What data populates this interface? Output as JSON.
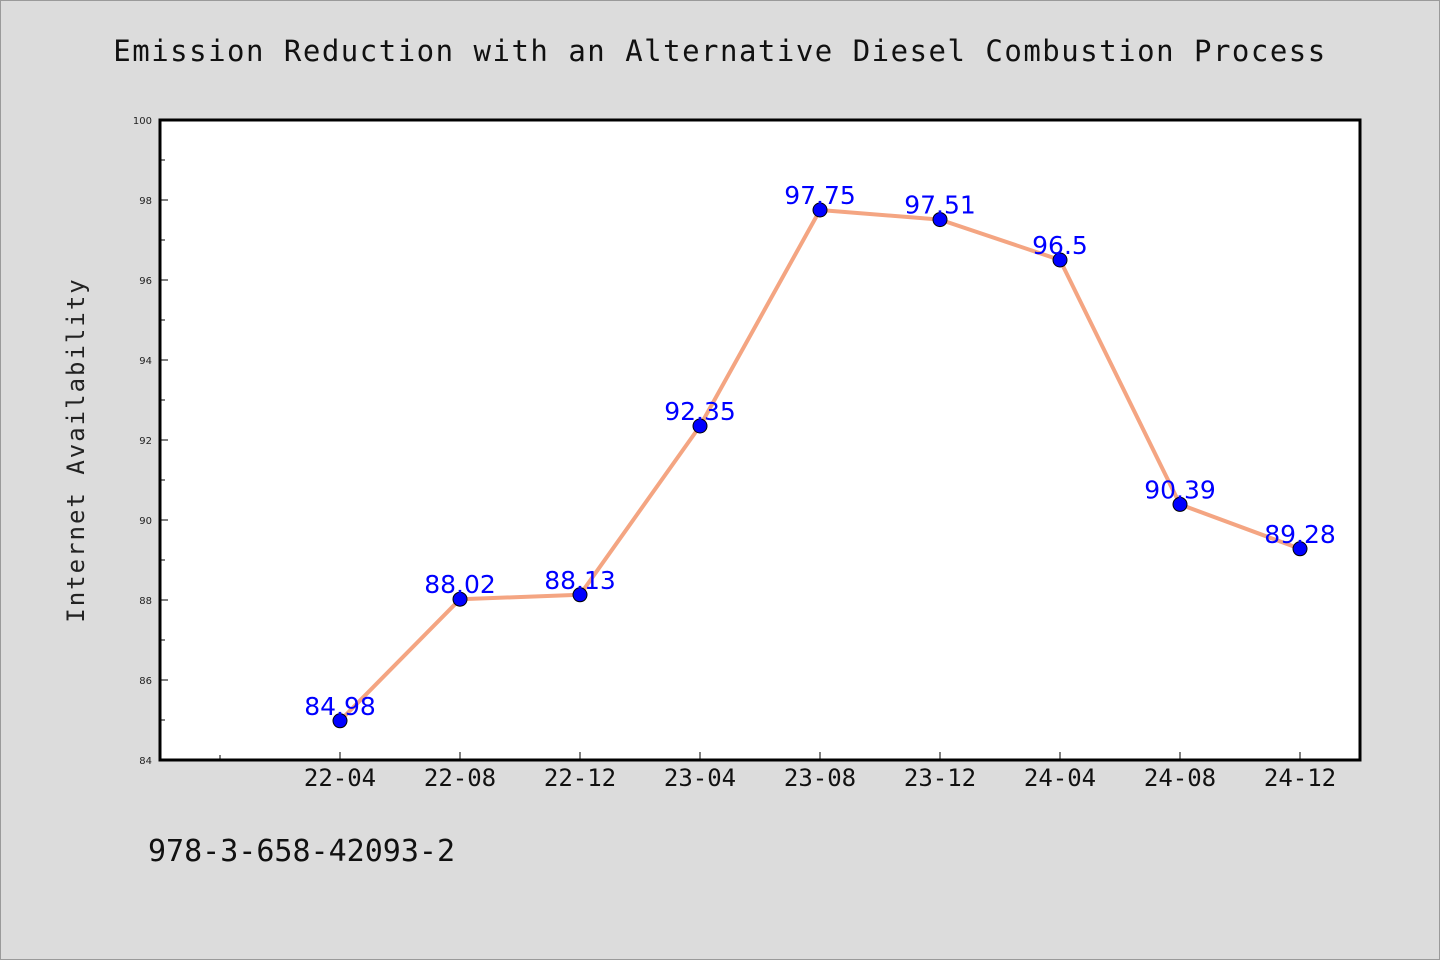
{
  "chart_data": {
    "type": "line",
    "title": "Emission Reduction with an Alternative Diesel Combustion Process",
    "xlabel": "",
    "ylabel": "Internet Availability",
    "categories": [
      "22-04",
      "22-08",
      "22-12",
      "23-04",
      "23-08",
      "23-12",
      "24-04",
      "24-08",
      "24-12"
    ],
    "series": [
      {
        "values": [
          84.98,
          88.02,
          88.13,
          92.35,
          97.75,
          97.51,
          96.5,
          90.39,
          89.28
        ]
      }
    ],
    "data_labels": [
      "84.98",
      "88.02",
      "88.13",
      "92.35",
      "97.75",
      "97.51",
      "96.5",
      "90.39",
      "89.28"
    ],
    "ylim": [
      84,
      100
    ],
    "yticks": [
      "84",
      "86",
      "88",
      "90",
      "92",
      "94",
      "96",
      "98",
      "100"
    ],
    "grid": false,
    "line_color": "#f4a582",
    "marker_color": "#0000ff",
    "label_color": "#0000ff"
  },
  "footnote": "978-3-658-42093-2"
}
